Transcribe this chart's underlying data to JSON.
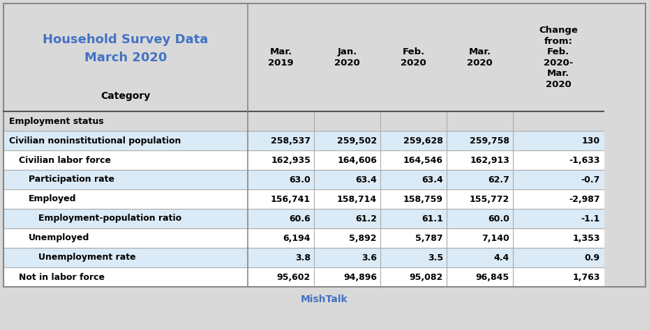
{
  "title_line1": "Household Survey Data",
  "title_line2": "March 2020",
  "title_color": "#4472C4",
  "footer": "MishTalk",
  "footer_color": "#4472C4",
  "col_headers": [
    "Mar.\n2019",
    "Jan.\n2020",
    "Feb.\n2020",
    "Mar.\n2020",
    "Change\nfrom:\nFeb.\n2020-\nMar.\n2020"
  ],
  "col_header_label": "Category",
  "rows": [
    {
      "label": "Employment status",
      "values": [
        "",
        "",
        "",
        "",
        ""
      ],
      "indent": 0,
      "bold": true,
      "row_bg": "#D9D9D9",
      "label_bg": "#D9D9D9"
    },
    {
      "label": "Civilian noninstitutional population",
      "values": [
        "258,537",
        "259,502",
        "259,628",
        "259,758",
        "130"
      ],
      "indent": 0,
      "bold": true,
      "row_bg": "#DAEAF6",
      "label_bg": "#DAEAF6"
    },
    {
      "label": "Civilian labor force",
      "values": [
        "162,935",
        "164,606",
        "164,546",
        "162,913",
        "-1,633"
      ],
      "indent": 1,
      "bold": true,
      "row_bg": "#FFFFFF",
      "label_bg": "#FFFFFF"
    },
    {
      "label": "Participation rate",
      "values": [
        "63.0",
        "63.4",
        "63.4",
        "62.7",
        "-0.7"
      ],
      "indent": 2,
      "bold": true,
      "row_bg": "#DAEAF6",
      "label_bg": "#DAEAF6"
    },
    {
      "label": "Employed",
      "values": [
        "156,741",
        "158,714",
        "158,759",
        "155,772",
        "-2,987"
      ],
      "indent": 2,
      "bold": true,
      "row_bg": "#FFFFFF",
      "label_bg": "#FFFFFF"
    },
    {
      "label": "Employment-population ratio",
      "values": [
        "60.6",
        "61.2",
        "61.1",
        "60.0",
        "-1.1"
      ],
      "indent": 3,
      "bold": true,
      "row_bg": "#DAEAF6",
      "label_bg": "#DAEAF6"
    },
    {
      "label": "Unemployed",
      "values": [
        "6,194",
        "5,892",
        "5,787",
        "7,140",
        "1,353"
      ],
      "indent": 2,
      "bold": true,
      "row_bg": "#FFFFFF",
      "label_bg": "#FFFFFF"
    },
    {
      "label": "Unemployment rate",
      "values": [
        "3.8",
        "3.6",
        "3.5",
        "4.4",
        "0.9"
      ],
      "indent": 3,
      "bold": true,
      "row_bg": "#DAEAF6",
      "label_bg": "#DAEAF6"
    },
    {
      "label": "Not in labor force",
      "values": [
        "95,602",
        "94,896",
        "95,082",
        "96,845",
        "1,763"
      ],
      "indent": 1,
      "bold": true,
      "row_bg": "#FFFFFF",
      "label_bg": "#FFFFFF"
    }
  ],
  "bg_color": "#D9D9D9",
  "fig_width": 9.3,
  "fig_height": 4.74,
  "dpi": 100
}
